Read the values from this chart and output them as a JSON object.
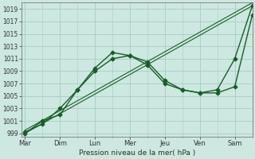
{
  "background_color": "#cce8e0",
  "grid_color": "#a8ccc6",
  "line_color": "#1a5c2a",
  "xlabel": "Pression niveau de la mer( hPa )",
  "ylim": [
    998.5,
    1020
  ],
  "ytick_values": [
    999,
    1001,
    1003,
    1005,
    1007,
    1009,
    1011,
    1013,
    1015,
    1017,
    1019
  ],
  "x_labels": [
    "Mar",
    "Dim",
    "Lun",
    "Mer",
    "Jeu",
    "Ven",
    "Sam"
  ],
  "x_positions": [
    0,
    1,
    2,
    3,
    4,
    5,
    6
  ],
  "xlim": [
    -0.1,
    6.5
  ],
  "series": [
    {
      "x": [
        0,
        0.5,
        1,
        1.5,
        2,
        2.5,
        3,
        3.5,
        4,
        4.5,
        5,
        5.5,
        6,
        6.5
      ],
      "y": [
        999,
        1001,
        1002,
        1006,
        1009,
        1011,
        1011.5,
        1010,
        1007,
        1006,
        1005.5,
        1006,
        1011,
        1019.5
      ],
      "marker": "D",
      "markersize": 2.5,
      "linewidth": 1.0
    },
    {
      "x": [
        0,
        0.5,
        1,
        1.5,
        2,
        2.5,
        3,
        3.5,
        4,
        4.5,
        5,
        5.5,
        6,
        6.5
      ],
      "y": [
        999.2,
        1000.5,
        1003,
        1006,
        1009.5,
        1012,
        1011.5,
        1010.5,
        1007.5,
        1006,
        1005.5,
        1005.5,
        1006.5,
        1018
      ],
      "marker": "P",
      "markersize": 3,
      "linewidth": 1.0
    },
    {
      "x": [
        0,
        6.5
      ],
      "y": [
        999,
        1019.5
      ],
      "marker": null,
      "markersize": 0,
      "linewidth": 0.8
    },
    {
      "x": [
        0,
        6.5
      ],
      "y": [
        999.5,
        1020
      ],
      "marker": null,
      "markersize": 0,
      "linewidth": 0.8
    }
  ]
}
